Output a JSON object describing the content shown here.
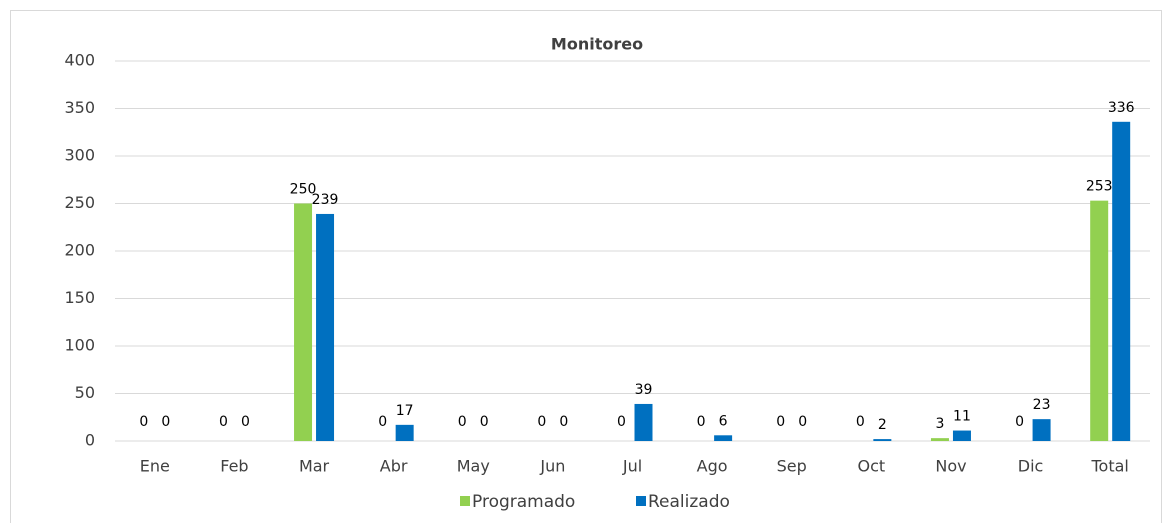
{
  "chart_data": {
    "type": "bar",
    "title": "Monitoreo",
    "categories": [
      "Ene",
      "Feb",
      "Mar",
      "Abr",
      "May",
      "Jun",
      "Jul",
      "Ago",
      "Sep",
      "Oct",
      "Nov",
      "Dic",
      "Total"
    ],
    "series": [
      {
        "name": "Programado",
        "color": "#92d050",
        "values": [
          0,
          0,
          250,
          0,
          0,
          0,
          0,
          0,
          0,
          0,
          3,
          0,
          253
        ]
      },
      {
        "name": "Realizado",
        "color": "#0070c0",
        "values": [
          0,
          0,
          239,
          17,
          0,
          0,
          39,
          6,
          0,
          2,
          11,
          23,
          336
        ]
      }
    ],
    "ylim": [
      0,
      400
    ],
    "yticks": [
      0,
      50,
      100,
      150,
      200,
      250,
      300,
      350,
      400
    ],
    "grid": true,
    "legend": "bottom"
  }
}
